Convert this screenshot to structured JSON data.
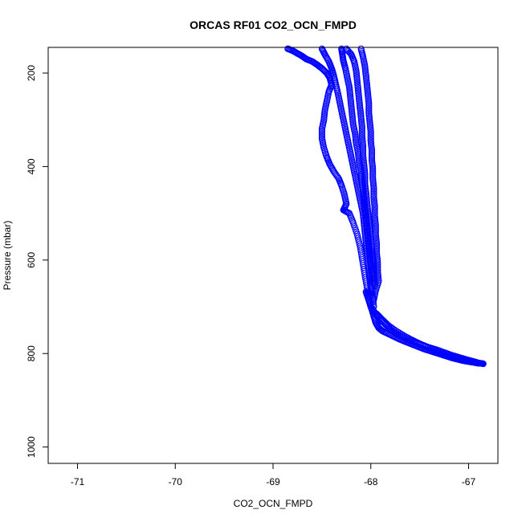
{
  "chart_data": {
    "type": "scatter",
    "title": "ORCAS RF01 CO2_OCN_FMPD",
    "xlabel": "CO2_OCN_FMPD",
    "ylabel": "Pressure (mbar)",
    "xlim": [
      -71.3,
      -66.7
    ],
    "ylim": [
      1035,
      145
    ],
    "y_inverted": true,
    "grid": false,
    "x_ticks": [
      -71,
      -70,
      -69,
      -68,
      -67
    ],
    "y_ticks": [
      200,
      400,
      600,
      800,
      1000
    ],
    "marker": "open-circle",
    "color": "#0000ff",
    "series": [
      {
        "points": [
          [
            -68.85,
            148
          ],
          [
            -68.8,
            152
          ],
          [
            -68.75,
            158
          ],
          [
            -68.7,
            164
          ],
          [
            -68.66,
            170
          ],
          [
            -68.6,
            175
          ],
          [
            -68.55,
            182
          ],
          [
            -68.5,
            190
          ],
          [
            -68.45,
            200
          ],
          [
            -68.42,
            210
          ],
          [
            -68.4,
            225
          ],
          [
            -68.43,
            240
          ],
          [
            -68.45,
            260
          ],
          [
            -68.47,
            280
          ],
          [
            -68.48,
            300
          ],
          [
            -68.5,
            320
          ],
          [
            -68.5,
            340
          ],
          [
            -68.48,
            360
          ],
          [
            -68.45,
            380
          ],
          [
            -68.42,
            395
          ],
          [
            -68.38,
            410
          ],
          [
            -68.33,
            425
          ],
          [
            -68.3,
            440
          ],
          [
            -68.27,
            460
          ],
          [
            -68.25,
            480
          ],
          [
            -68.28,
            493
          ],
          [
            -68.22,
            500
          ],
          [
            -68.18,
            520
          ],
          [
            -68.14,
            545
          ],
          [
            -68.11,
            570
          ],
          [
            -68.09,
            595
          ],
          [
            -68.07,
            620
          ],
          [
            -68.05,
            645
          ],
          [
            -68.03,
            670
          ]
        ]
      },
      {
        "points": [
          [
            -68.5,
            148
          ],
          [
            -68.47,
            160
          ],
          [
            -68.43,
            175
          ],
          [
            -68.4,
            190
          ],
          [
            -68.38,
            205
          ],
          [
            -68.36,
            222
          ],
          [
            -68.34,
            240
          ],
          [
            -68.32,
            260
          ],
          [
            -68.3,
            280
          ],
          [
            -68.28,
            300
          ],
          [
            -68.26,
            320
          ],
          [
            -68.24,
            340
          ],
          [
            -68.22,
            360
          ],
          [
            -68.2,
            380
          ],
          [
            -68.18,
            400
          ],
          [
            -68.16,
            420
          ],
          [
            -68.14,
            440
          ],
          [
            -68.12,
            460
          ],
          [
            -68.1,
            480
          ],
          [
            -68.08,
            500
          ],
          [
            -68.07,
            520
          ],
          [
            -68.06,
            540
          ],
          [
            -68.05,
            560
          ],
          [
            -68.04,
            580
          ],
          [
            -68.03,
            600
          ],
          [
            -68.02,
            620
          ],
          [
            -68.01,
            640
          ],
          [
            -68.0,
            660
          ],
          [
            -67.98,
            680
          ],
          [
            -67.97,
            700
          ]
        ]
      },
      {
        "points": [
          [
            -68.3,
            148
          ],
          [
            -68.29,
            160
          ],
          [
            -68.28,
            175
          ],
          [
            -68.26,
            190
          ],
          [
            -68.24,
            210
          ],
          [
            -68.22,
            230
          ],
          [
            -68.21,
            250
          ],
          [
            -68.2,
            270
          ],
          [
            -68.19,
            290
          ],
          [
            -68.18,
            310
          ],
          [
            -68.16,
            330
          ],
          [
            -68.15,
            350
          ],
          [
            -68.13,
            370
          ],
          [
            -68.12,
            390
          ],
          [
            -68.1,
            410
          ],
          [
            -68.09,
            430
          ],
          [
            -68.08,
            450
          ],
          [
            -68.07,
            470
          ],
          [
            -68.06,
            490
          ],
          [
            -68.05,
            510
          ],
          [
            -68.04,
            530
          ],
          [
            -68.03,
            550
          ],
          [
            -68.02,
            570
          ],
          [
            -68.01,
            590
          ],
          [
            -68.0,
            610
          ],
          [
            -67.99,
            630
          ],
          [
            -67.98,
            650
          ]
        ]
      },
      {
        "points": [
          [
            -68.25,
            148
          ],
          [
            -68.2,
            160
          ],
          [
            -68.17,
            175
          ],
          [
            -68.15,
            195
          ],
          [
            -68.14,
            215
          ],
          [
            -68.13,
            235
          ],
          [
            -68.12,
            255
          ],
          [
            -68.11,
            275
          ],
          [
            -68.1,
            295
          ],
          [
            -68.09,
            315
          ],
          [
            -68.09,
            335
          ],
          [
            -68.08,
            355
          ],
          [
            -68.08,
            375
          ],
          [
            -68.07,
            395
          ],
          [
            -68.06,
            415
          ],
          [
            -68.06,
            435
          ],
          [
            -68.05,
            455
          ],
          [
            -68.04,
            475
          ],
          [
            -68.03,
            495
          ],
          [
            -68.02,
            515
          ],
          [
            -68.01,
            535
          ],
          [
            -68.0,
            555
          ],
          [
            -67.99,
            575
          ],
          [
            -67.98,
            595
          ],
          [
            -67.97,
            615
          ],
          [
            -67.97,
            635
          ],
          [
            -67.96,
            655
          ]
        ]
      },
      {
        "points": [
          [
            -68.1,
            148
          ],
          [
            -68.08,
            165
          ],
          [
            -68.06,
            185
          ],
          [
            -68.05,
            205
          ],
          [
            -68.04,
            225
          ],
          [
            -68.03,
            245
          ],
          [
            -68.02,
            265
          ],
          [
            -68.02,
            285
          ],
          [
            -68.01,
            305
          ],
          [
            -68.0,
            325
          ],
          [
            -68.0,
            345
          ],
          [
            -67.99,
            365
          ],
          [
            -67.99,
            385
          ],
          [
            -67.98,
            405
          ],
          [
            -67.98,
            425
          ],
          [
            -67.97,
            445
          ],
          [
            -67.97,
            465
          ],
          [
            -67.96,
            485
          ],
          [
            -67.96,
            505
          ],
          [
            -67.95,
            525
          ],
          [
            -67.95,
            545
          ],
          [
            -67.94,
            565
          ],
          [
            -67.94,
            585
          ],
          [
            -67.93,
            605
          ],
          [
            -67.93,
            625
          ],
          [
            -67.92,
            645
          ],
          [
            -67.95,
            665
          ],
          [
            -67.97,
            685
          ]
        ]
      },
      {
        "points": [
          [
            -68.05,
            668
          ],
          [
            -68.03,
            680
          ],
          [
            -68.01,
            693
          ],
          [
            -67.99,
            706
          ],
          [
            -67.97,
            720
          ],
          [
            -67.95,
            734
          ],
          [
            -67.92,
            745
          ],
          [
            -67.88,
            752
          ],
          [
            -67.82,
            758
          ],
          [
            -67.76,
            764
          ],
          [
            -67.7,
            770
          ],
          [
            -67.64,
            775
          ],
          [
            -67.58,
            780
          ],
          [
            -67.52,
            785
          ],
          [
            -67.46,
            790
          ],
          [
            -67.4,
            794
          ],
          [
            -67.34,
            798
          ],
          [
            -67.28,
            802
          ],
          [
            -67.22,
            806
          ],
          [
            -67.16,
            810
          ],
          [
            -67.1,
            813
          ],
          [
            -67.04,
            816
          ],
          [
            -66.98,
            818
          ],
          [
            -66.92,
            820
          ],
          [
            -66.87,
            821
          ],
          [
            -66.85,
            822
          ]
        ]
      },
      {
        "points": [
          [
            -68.0,
            700
          ],
          [
            -67.96,
            712
          ],
          [
            -67.92,
            724
          ],
          [
            -67.86,
            736
          ],
          [
            -67.8,
            748
          ],
          [
            -67.74,
            758
          ],
          [
            -67.66,
            766
          ],
          [
            -67.58,
            774
          ],
          [
            -67.5,
            780
          ],
          [
            -67.42,
            786
          ],
          [
            -67.34,
            791
          ],
          [
            -67.26,
            797
          ],
          [
            -67.18,
            803
          ],
          [
            -67.1,
            808
          ],
          [
            -67.02,
            813
          ],
          [
            -66.95,
            817
          ],
          [
            -66.9,
            820
          ]
        ]
      },
      {
        "points": [
          [
            -67.94,
            715
          ],
          [
            -67.88,
            728
          ],
          [
            -67.82,
            740
          ],
          [
            -67.74,
            752
          ],
          [
            -67.66,
            762
          ],
          [
            -67.58,
            771
          ],
          [
            -67.5,
            779
          ],
          [
            -67.42,
            786
          ],
          [
            -67.34,
            794
          ],
          [
            -67.26,
            801
          ],
          [
            -67.18,
            806
          ],
          [
            -67.1,
            811
          ],
          [
            -67.02,
            815
          ],
          [
            -66.96,
            818
          ],
          [
            -66.9,
            821
          ]
        ]
      }
    ],
    "filled_points": [
      [
        -68.28,
        493
      ],
      [
        -68.02,
        670
      ],
      [
        -66.85,
        822
      ]
    ]
  }
}
